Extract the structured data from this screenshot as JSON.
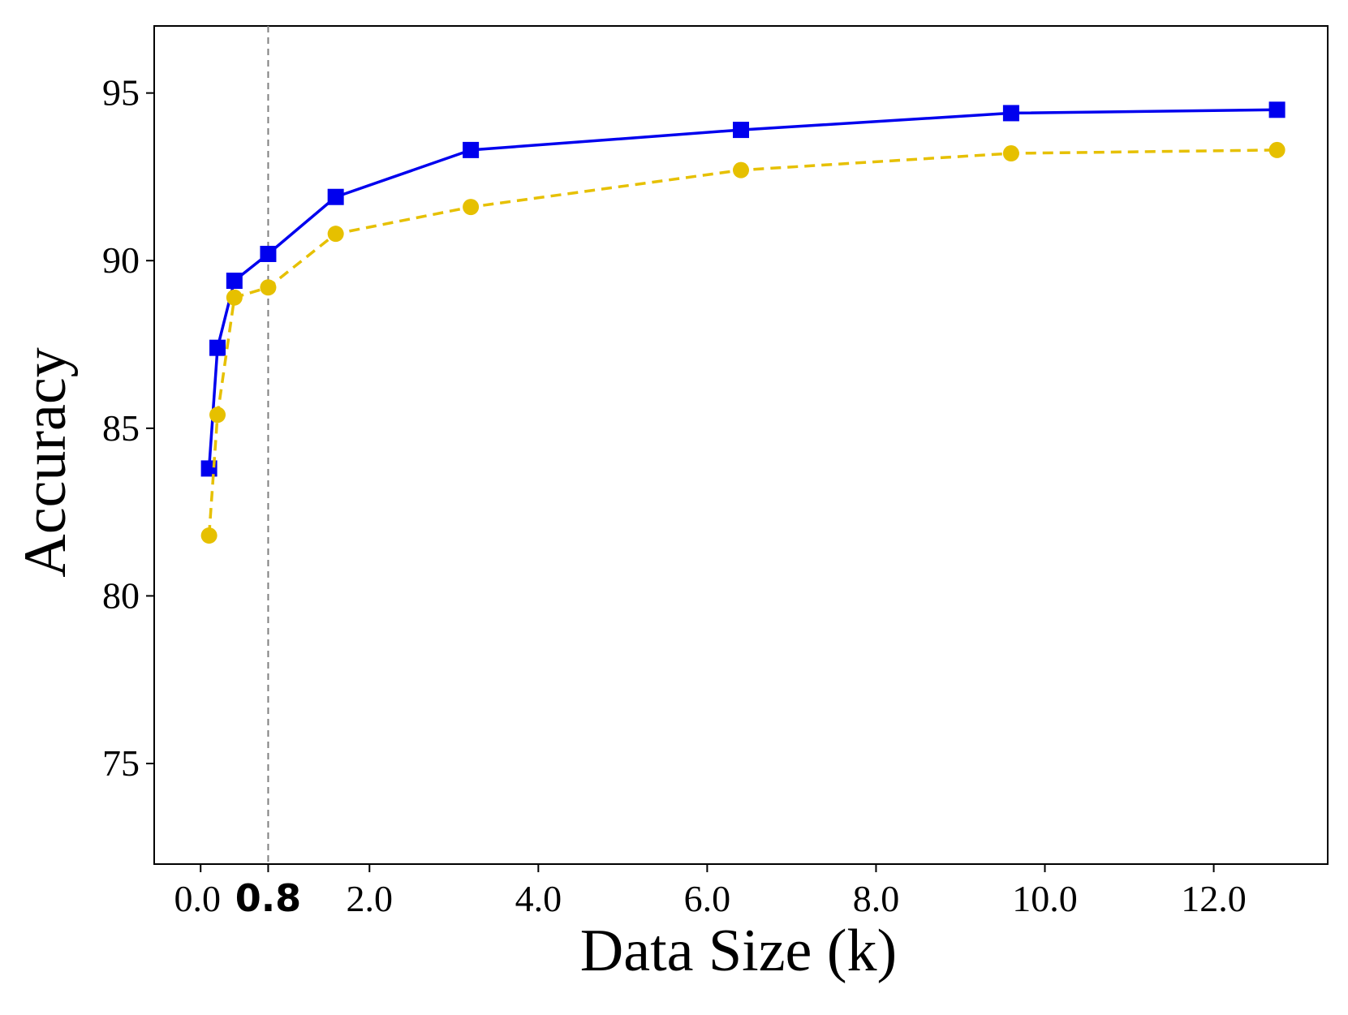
{
  "chart_data": {
    "type": "line",
    "title": "",
    "xlabel": "Data Size (k)",
    "ylabel": "Accuracy",
    "xlim": [
      -0.55,
      13.35
    ],
    "ylim": [
      72,
      97
    ],
    "x_ticks": [
      0.0,
      0.8,
      2.0,
      4.0,
      6.0,
      8.0,
      10.0,
      12.0
    ],
    "x_tick_labels": [
      "0.0",
      "0.8",
      "2.0",
      "4.0",
      "6.0",
      "8.0",
      "10.0",
      "12.0"
    ],
    "bold_tick": "0.8",
    "y_ticks": [
      75,
      80,
      85,
      90,
      95
    ],
    "y_tick_labels": [
      "75",
      "80",
      "85",
      "90",
      "95"
    ],
    "reference_line": {
      "x": 0.8,
      "style": "dashed",
      "color": "#808080"
    },
    "grid": false,
    "legend": "none",
    "series": [
      {
        "color": "#0000ee",
        "line_style": "solid",
        "marker": "square",
        "x": [
          0.1,
          0.2,
          0.4,
          0.8,
          1.6,
          3.2,
          6.4,
          9.6,
          12.75
        ],
        "y": [
          83.8,
          87.4,
          89.4,
          90.2,
          91.9,
          93.3,
          93.9,
          94.4,
          94.5
        ]
      },
      {
        "color": "#e6c000",
        "line_style": "dashed",
        "marker": "circle",
        "x": [
          0.1,
          0.2,
          0.4,
          0.8,
          1.6,
          3.2,
          6.4,
          9.6,
          12.75
        ],
        "y": [
          81.8,
          85.4,
          88.9,
          89.2,
          90.8,
          91.6,
          92.7,
          93.2,
          93.3
        ]
      }
    ]
  }
}
